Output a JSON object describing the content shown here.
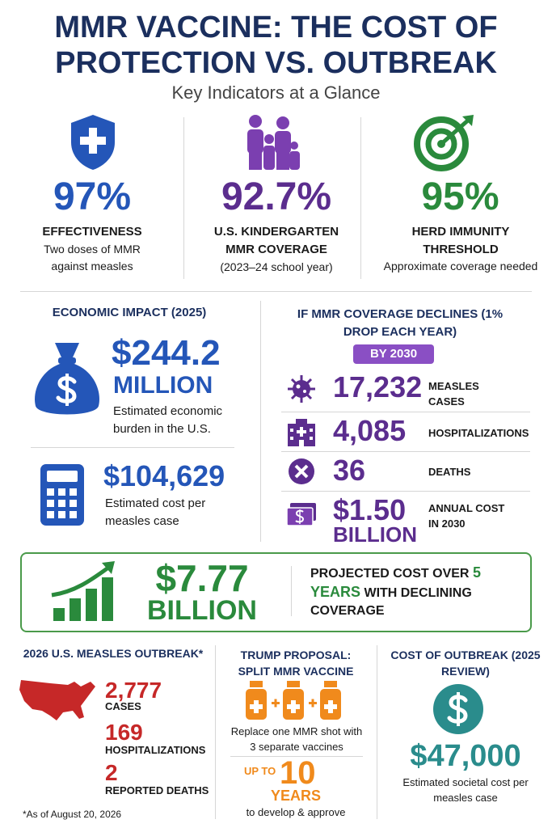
{
  "header": {
    "title_line1": "MMR VACCINE: THE COST OF",
    "title_line2": "PROTECTION VS. OUTBREAK",
    "subtitle": "Key Indicators at a Glance"
  },
  "indicators": [
    {
      "value": "97%",
      "label": "EFFECTIVENESS",
      "note": "Two doses of MMR against measles"
    },
    {
      "value": "92.7%",
      "label": "U.S. KINDERGARTEN MMR COVERAGE",
      "note": "(2023–24 school year)"
    },
    {
      "value": "95%",
      "label": "HERD IMMUNITY THRESHOLD",
      "note": "Approximate coverage needed"
    }
  ],
  "economic": {
    "title": "ECONOMIC IMPACT (2025)",
    "total": {
      "value": "$244.2",
      "unit": "MILLION",
      "note": "Estimated economic burden in the U.S."
    },
    "per_case": {
      "value": "$104,629",
      "note": "Estimated cost per measles case"
    }
  },
  "decline": {
    "title": "IF MMR COVERAGE DECLINES (1% DROP EACH YEAR)",
    "badge": "BY 2030",
    "rows": [
      {
        "value": "17,232",
        "label": "MEASLES CASES"
      },
      {
        "value": "4,085",
        "label": "HOSPITALIZATIONS"
      },
      {
        "value": "36",
        "label": "DEATHS"
      },
      {
        "value": "$1.50",
        "unit": "BILLION",
        "label": "ANNUAL COST IN 2030"
      }
    ]
  },
  "projected": {
    "value": "$7.77",
    "unit": "BILLION",
    "text_before": "PROJECTED COST OVER",
    "highlight": "5 YEARS",
    "text_after": "WITH DECLINING COVERAGE"
  },
  "outbreak": {
    "title": "2026 U.S. MEASLES OUTBREAK*",
    "stats": [
      {
        "value": "2,777",
        "label": "CASES"
      },
      {
        "value": "169",
        "label": "HOSPITALIZATIONS"
      },
      {
        "value": "2",
        "label": "REPORTED DEATHS"
      }
    ],
    "footnote": "*As of August 20, 2026"
  },
  "proposal": {
    "title": "TRUMP PROPOSAL: SPLIT MMR VACCINE",
    "note": "Replace one MMR shot with 3 separate vaccines",
    "prefix": "UP TO",
    "value": "10",
    "unit": "YEARS",
    "footer": "to develop & approve"
  },
  "cost": {
    "title": "COST OF OUTBREAK (2025 REVIEW)",
    "value": "$47,000",
    "note": "Estimated societal cost per measles case"
  }
}
